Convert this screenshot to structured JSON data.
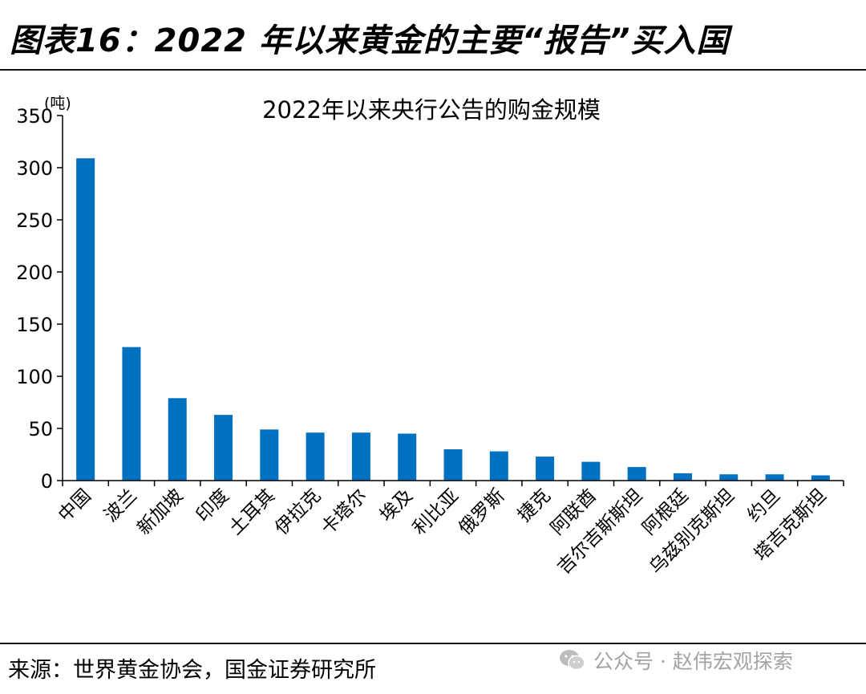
{
  "figure_title": "图表16：2022 年以来黄金的主要“报告”买入国",
  "source_note": "来源：世界黄金协会，国金证券研究所",
  "watermark": "公众号 · 赵伟宏观探索",
  "colors": {
    "bar": "#0070C0",
    "axis": "#000000",
    "text": "#000000"
  },
  "chart_data": {
    "type": "bar",
    "title": "2022年以来央行公告的购金规模",
    "unit_label": "(吨)",
    "xlabel": "",
    "ylabel": "",
    "ylim": [
      0,
      350
    ],
    "yticks": [
      0,
      50,
      100,
      150,
      200,
      250,
      300,
      350
    ],
    "grid": false,
    "categories": [
      "中国",
      "波兰",
      "新加坡",
      "印度",
      "土耳其",
      "伊拉克",
      "卡塔尔",
      "埃及",
      "利比亚",
      "俄罗斯",
      "捷克",
      "阿联酋",
      "吉尔吉斯斯坦",
      "阿根廷",
      "乌兹别克斯坦",
      "约旦",
      "塔吉克斯坦"
    ],
    "values": [
      309,
      128,
      79,
      63,
      49,
      46,
      46,
      45,
      30,
      28,
      23,
      18,
      13,
      7,
      6,
      6,
      5
    ]
  }
}
